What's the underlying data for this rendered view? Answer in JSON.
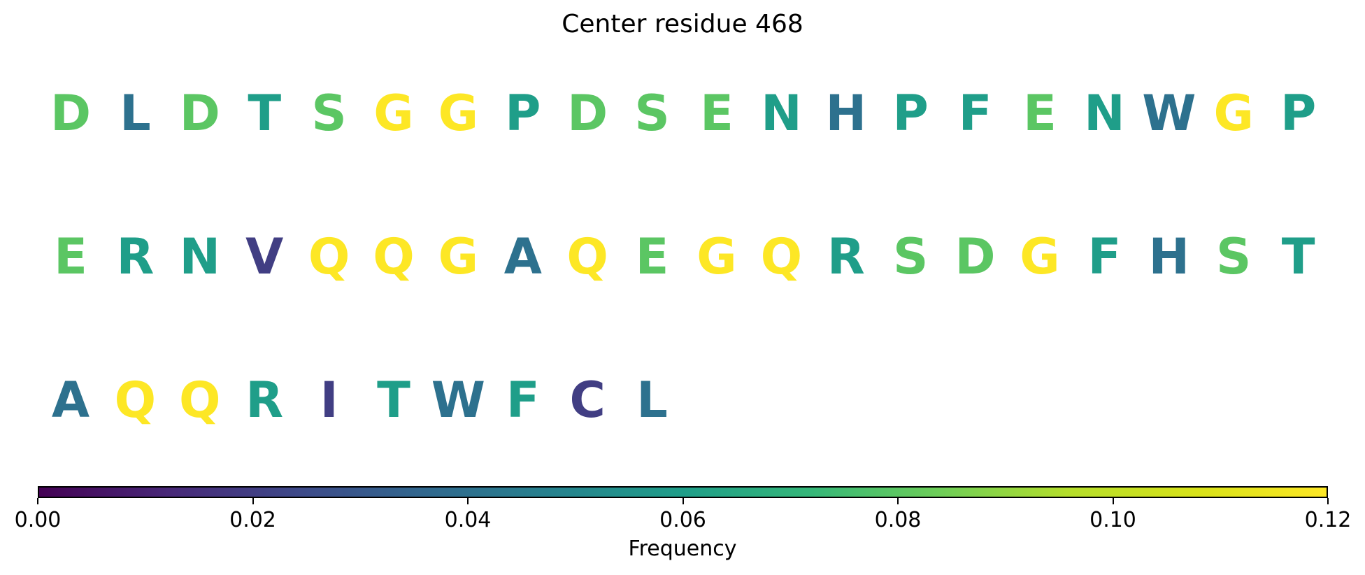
{
  "chart_data": {
    "type": "other",
    "title": "Center residue 468",
    "residues": [
      {
        "letter": "D",
        "frequency": 0.08
      },
      {
        "letter": "L",
        "frequency": 0.04
      },
      {
        "letter": "D",
        "frequency": 0.08
      },
      {
        "letter": "T",
        "frequency": 0.06
      },
      {
        "letter": "S",
        "frequency": 0.08
      },
      {
        "letter": "G",
        "frequency": 0.12
      },
      {
        "letter": "G",
        "frequency": 0.12
      },
      {
        "letter": "P",
        "frequency": 0.06
      },
      {
        "letter": "D",
        "frequency": 0.08
      },
      {
        "letter": "S",
        "frequency": 0.08
      },
      {
        "letter": "E",
        "frequency": 0.08
      },
      {
        "letter": "N",
        "frequency": 0.06
      },
      {
        "letter": "H",
        "frequency": 0.04
      },
      {
        "letter": "P",
        "frequency": 0.06
      },
      {
        "letter": "F",
        "frequency": 0.06
      },
      {
        "letter": "E",
        "frequency": 0.08
      },
      {
        "letter": "N",
        "frequency": 0.06
      },
      {
        "letter": "W",
        "frequency": 0.04
      },
      {
        "letter": "G",
        "frequency": 0.12
      },
      {
        "letter": "P",
        "frequency": 0.06
      },
      {
        "letter": "E",
        "frequency": 0.08
      },
      {
        "letter": "R",
        "frequency": 0.06
      },
      {
        "letter": "N",
        "frequency": 0.06
      },
      {
        "letter": "V",
        "frequency": 0.02
      },
      {
        "letter": "Q",
        "frequency": 0.12
      },
      {
        "letter": "Q",
        "frequency": 0.12
      },
      {
        "letter": "G",
        "frequency": 0.12
      },
      {
        "letter": "A",
        "frequency": 0.04
      },
      {
        "letter": "Q",
        "frequency": 0.12
      },
      {
        "letter": "E",
        "frequency": 0.08
      },
      {
        "letter": "G",
        "frequency": 0.12
      },
      {
        "letter": "Q",
        "frequency": 0.12
      },
      {
        "letter": "R",
        "frequency": 0.06
      },
      {
        "letter": "S",
        "frequency": 0.08
      },
      {
        "letter": "D",
        "frequency": 0.08
      },
      {
        "letter": "G",
        "frequency": 0.12
      },
      {
        "letter": "F",
        "frequency": 0.06
      },
      {
        "letter": "H",
        "frequency": 0.04
      },
      {
        "letter": "S",
        "frequency": 0.08
      },
      {
        "letter": "T",
        "frequency": 0.06
      },
      {
        "letter": "A",
        "frequency": 0.04
      },
      {
        "letter": "Q",
        "frequency": 0.12
      },
      {
        "letter": "Q",
        "frequency": 0.12
      },
      {
        "letter": "R",
        "frequency": 0.06
      },
      {
        "letter": "I",
        "frequency": 0.02
      },
      {
        "letter": "T",
        "frequency": 0.06
      },
      {
        "letter": "W",
        "frequency": 0.04
      },
      {
        "letter": "F",
        "frequency": 0.06
      },
      {
        "letter": "C",
        "frequency": 0.02
      },
      {
        "letter": "L",
        "frequency": 0.04
      }
    ],
    "colorbar": {
      "colormap": "viridis",
      "range": [
        0.0,
        0.12
      ],
      "ticks": [
        "0.00",
        "0.02",
        "0.04",
        "0.06",
        "0.08",
        "0.10",
        "0.12"
      ],
      "label": "Frequency",
      "orientation": "horizontal"
    }
  }
}
